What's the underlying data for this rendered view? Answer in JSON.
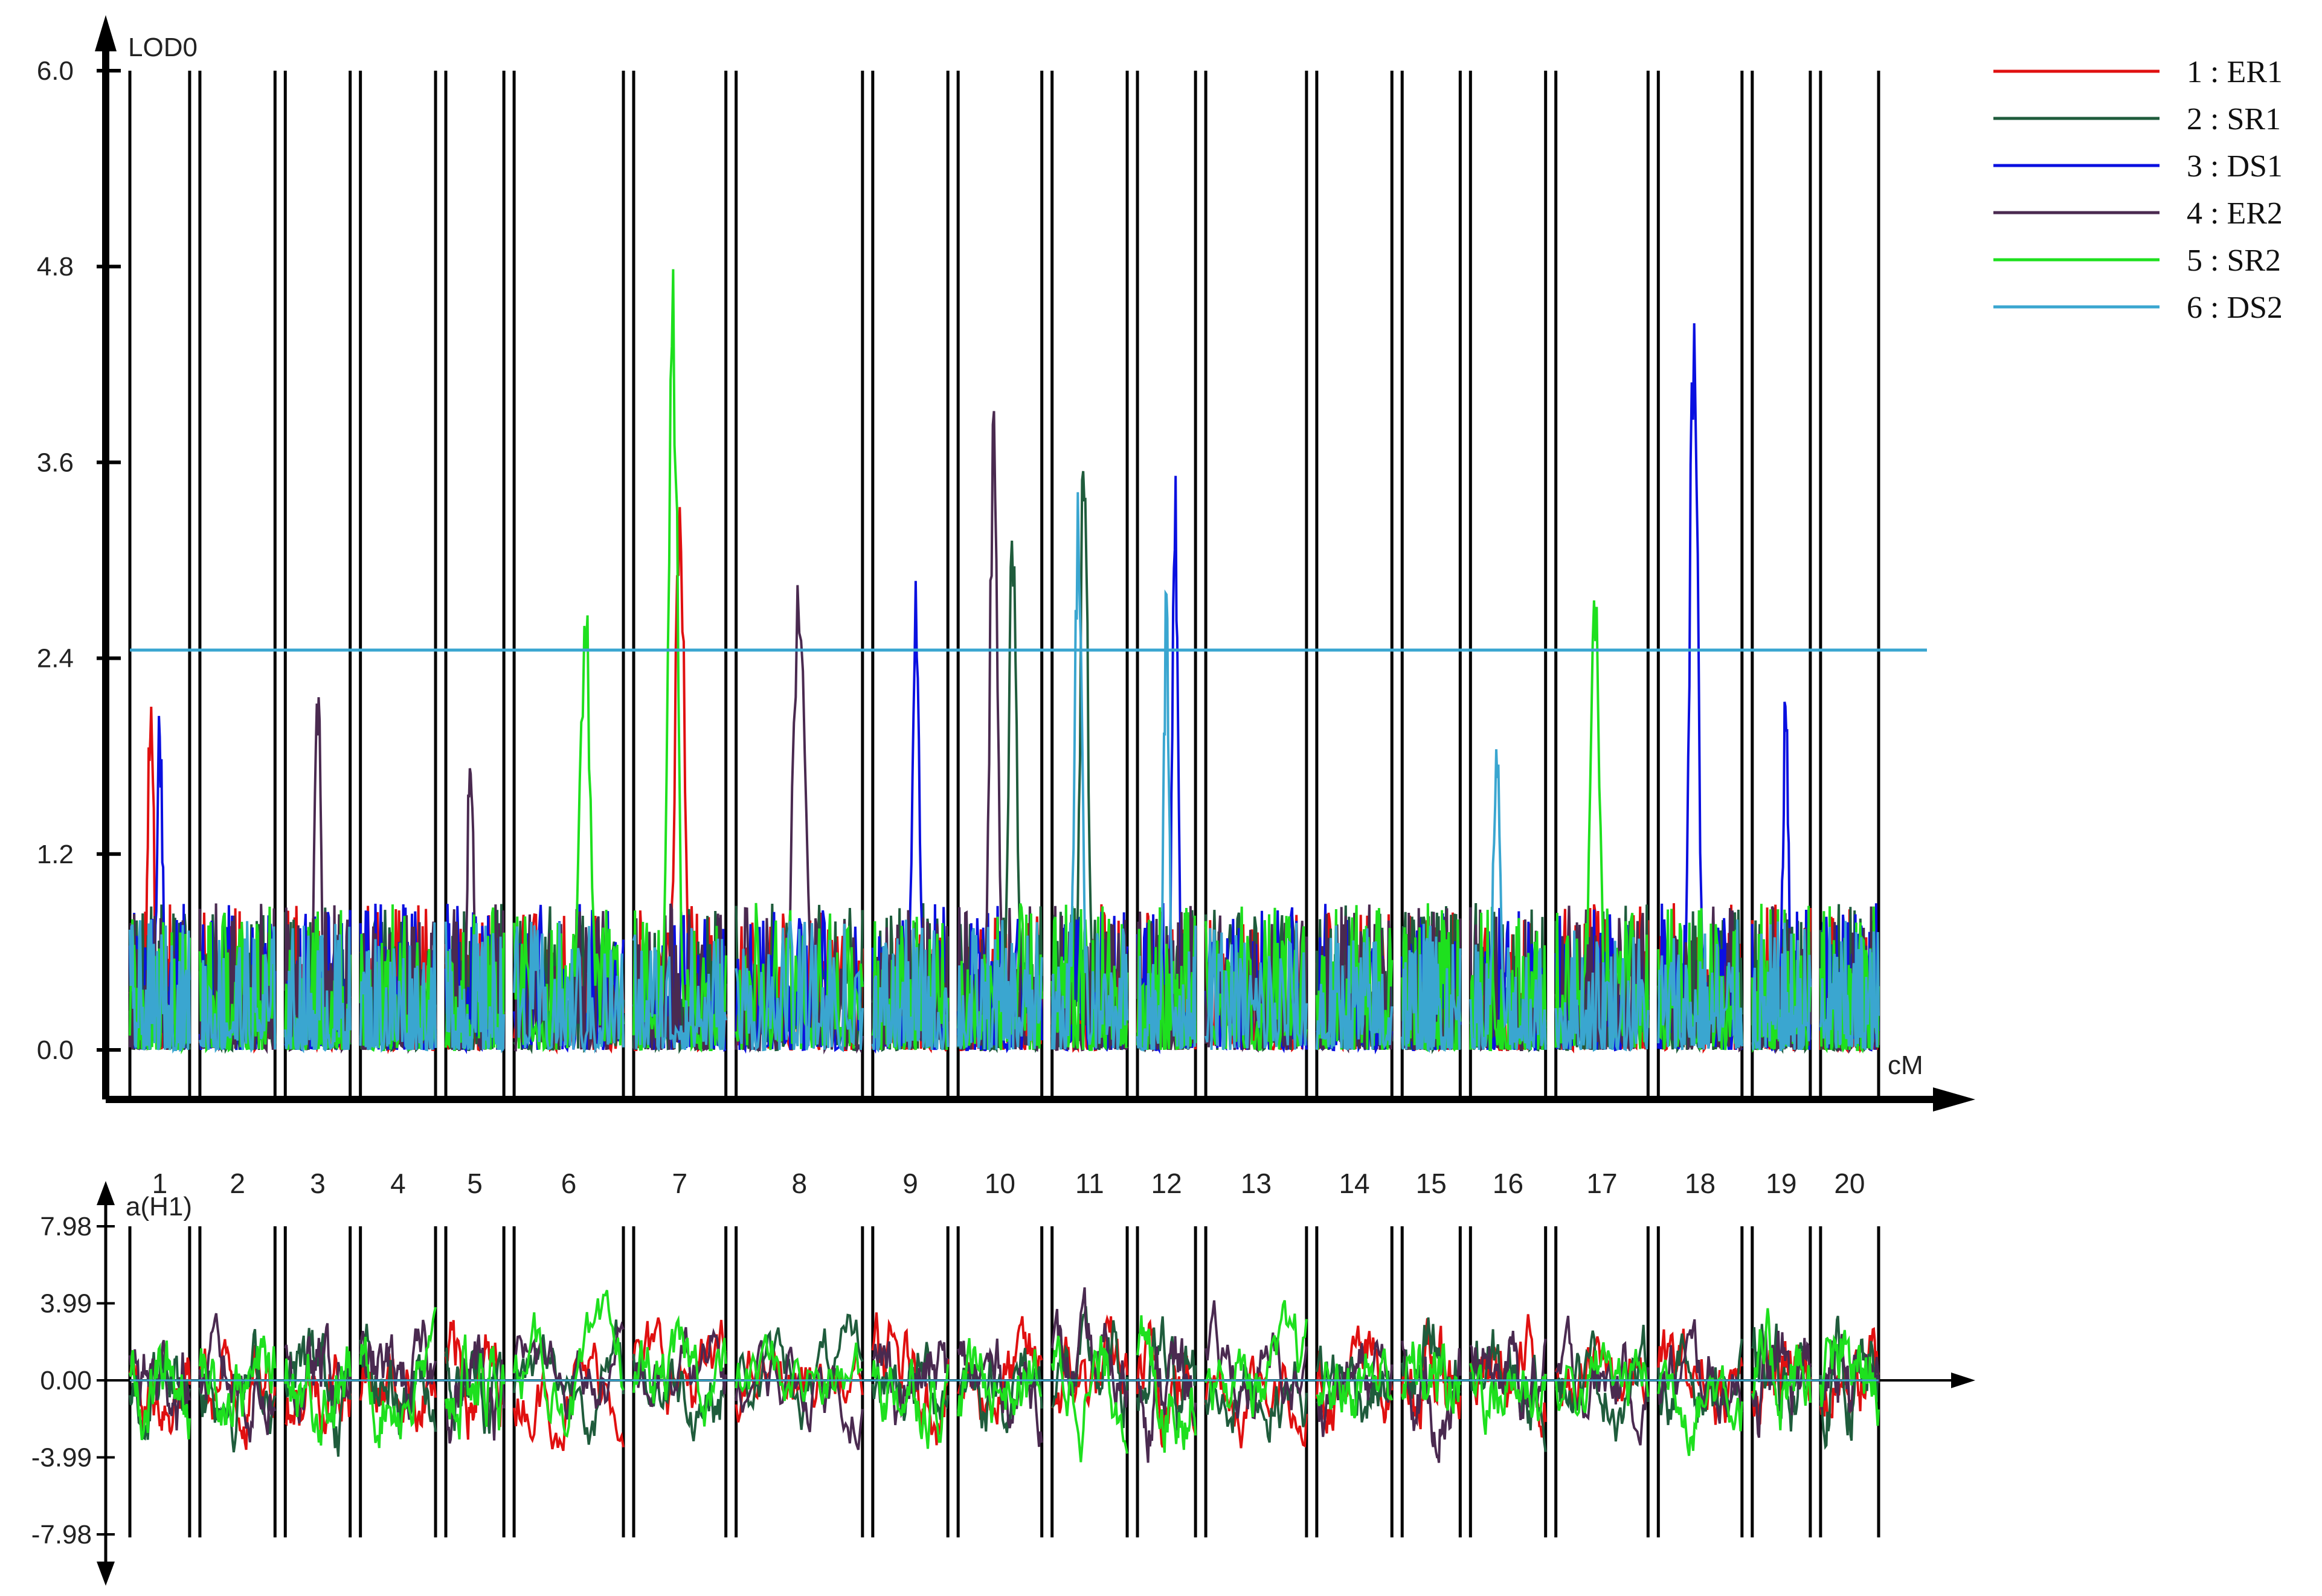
{
  "chart_data": [
    {
      "type": "line",
      "title": "",
      "ylabel": "LOD0",
      "xlabel": "cM",
      "ylim": [
        0,
        6.0
      ],
      "yticks": [
        "0.0",
        "1.2",
        "2.4",
        "3.6",
        "4.8",
        "6.0"
      ],
      "yticks_values": [
        0,
        1.2,
        2.4,
        3.6,
        4.8,
        6.0
      ],
      "threshold": {
        "value": 2.45,
        "color": "#3aa6d0"
      },
      "chromosomes": [
        "1",
        "2",
        "3",
        "4",
        "5",
        "6",
        "7",
        "8",
        "9",
        "10",
        "11",
        "12",
        "13",
        "14",
        "15",
        "16",
        "17",
        "18",
        "19",
        "20"
      ],
      "chromosome_spans": [
        [
          0.0,
          0.35
        ],
        [
          0.41,
          0.85
        ],
        [
          0.91,
          1.29
        ],
        [
          1.35,
          1.79
        ],
        [
          1.85,
          2.19
        ],
        [
          2.25,
          2.89
        ],
        [
          2.95,
          3.49
        ],
        [
          3.55,
          4.29
        ],
        [
          4.35,
          4.79
        ],
        [
          4.85,
          5.34
        ],
        [
          5.4,
          5.84
        ],
        [
          5.9,
          6.24
        ],
        [
          6.3,
          6.89
        ],
        [
          6.95,
          7.39
        ],
        [
          7.45,
          7.79
        ],
        [
          7.85,
          8.29
        ],
        [
          8.35,
          8.89
        ],
        [
          8.95,
          9.44
        ],
        [
          9.5,
          9.84
        ],
        [
          9.9,
          10.24
        ]
      ],
      "peaks": [
        {
          "chr": 1,
          "series": "ER1",
          "value": 2.5
        },
        {
          "chr": 1,
          "series": "DS1",
          "value": 2.2
        },
        {
          "chr": 3,
          "series": "ER2",
          "value": 2.45
        },
        {
          "chr": 5,
          "series": "ER2",
          "value": 2.15
        },
        {
          "chr": 6,
          "series": "SR2",
          "value": 2.95
        },
        {
          "chr": 7,
          "series": "SR2",
          "value": 5.15
        },
        {
          "chr": 7,
          "series": "ER1",
          "value": 3.7
        },
        {
          "chr": 8,
          "series": "ER2",
          "value": 3.15
        },
        {
          "chr": 9,
          "series": "DS1",
          "value": 2.9
        },
        {
          "chr": 10,
          "series": "SR1",
          "value": 3.35
        },
        {
          "chr": 10,
          "series": "ER2",
          "value": 4.0
        },
        {
          "chr": 11,
          "series": "SR1",
          "value": 4.15
        },
        {
          "chr": 11,
          "series": "DS2",
          "value": 3.6
        },
        {
          "chr": 12,
          "series": "DS1",
          "value": 3.7
        },
        {
          "chr": 12,
          "series": "DS2",
          "value": 2.95
        },
        {
          "chr": 16,
          "series": "DS2",
          "value": 1.95
        },
        {
          "chr": 17,
          "series": "SR2",
          "value": 3.3
        },
        {
          "chr": 18,
          "series": "DS1",
          "value": 5.0
        },
        {
          "chr": 19,
          "series": "DS1",
          "value": 2.3
        }
      ]
    },
    {
      "type": "line",
      "title": "",
      "ylabel": "a(H1)",
      "ylim": [
        -7.98,
        7.98
      ],
      "yticks": [
        "7.98",
        "3.99",
        "0.00",
        "-3.99",
        "-7.98"
      ],
      "yticks_values": [
        7.98,
        3.99,
        0.0,
        -3.99,
        -7.98
      ]
    }
  ],
  "legend": {
    "placement": "top-right",
    "items": [
      {
        "label": "1 : ER1",
        "color": "#e01010"
      },
      {
        "label": "2 : SR1",
        "color": "#1f5c3c"
      },
      {
        "label": "3 : DS1",
        "color": "#0a10e0"
      },
      {
        "label": "4 : ER2",
        "color": "#4a2a50"
      },
      {
        "label": "5 : SR2",
        "color": "#1ee01e"
      },
      {
        "label": "6 : DS2",
        "color": "#3aa6d0"
      }
    ]
  }
}
